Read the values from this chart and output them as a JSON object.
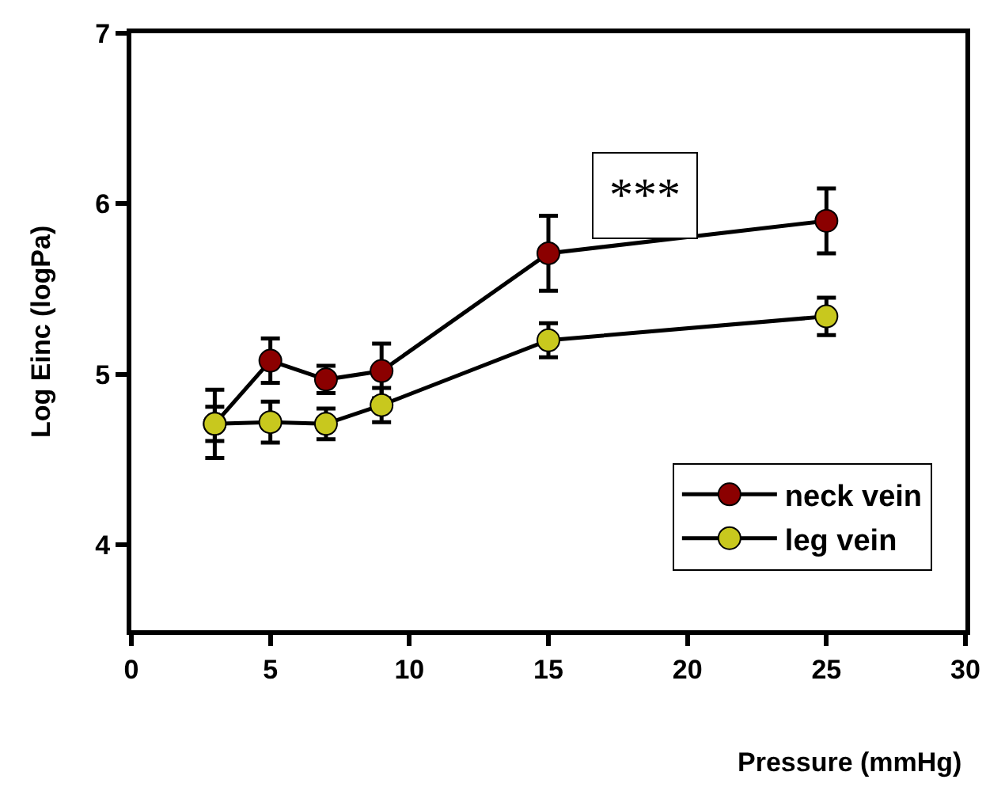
{
  "chart_data": {
    "type": "line",
    "xlabel": "Pressure (mmHg)",
    "ylabel": "Log Einc (logPa)",
    "x": [
      3,
      5,
      7,
      9,
      15,
      25
    ],
    "series": [
      {
        "name": "neck vein",
        "color": "#8b0000",
        "values": [
          4.71,
          5.08,
          4.97,
          5.02,
          5.71,
          5.9
        ],
        "errors": [
          0.2,
          0.13,
          0.08,
          0.16,
          0.22,
          0.19
        ]
      },
      {
        "name": "leg vein",
        "color": "#c8c81e",
        "values": [
          4.71,
          4.72,
          4.71,
          4.82,
          5.2,
          5.34
        ],
        "errors": [
          0.1,
          0.12,
          0.09,
          0.1,
          0.1,
          0.11
        ]
      }
    ],
    "xlim": [
      0,
      30
    ],
    "xticks": [
      0,
      5,
      10,
      15,
      20,
      25,
      30
    ],
    "ylim": [
      3.5,
      7
    ],
    "yticks": [
      4,
      5,
      6,
      7
    ],
    "annotations": [
      "***"
    ],
    "marker": "circle",
    "line_style": "solid",
    "legend": "bottom right"
  }
}
